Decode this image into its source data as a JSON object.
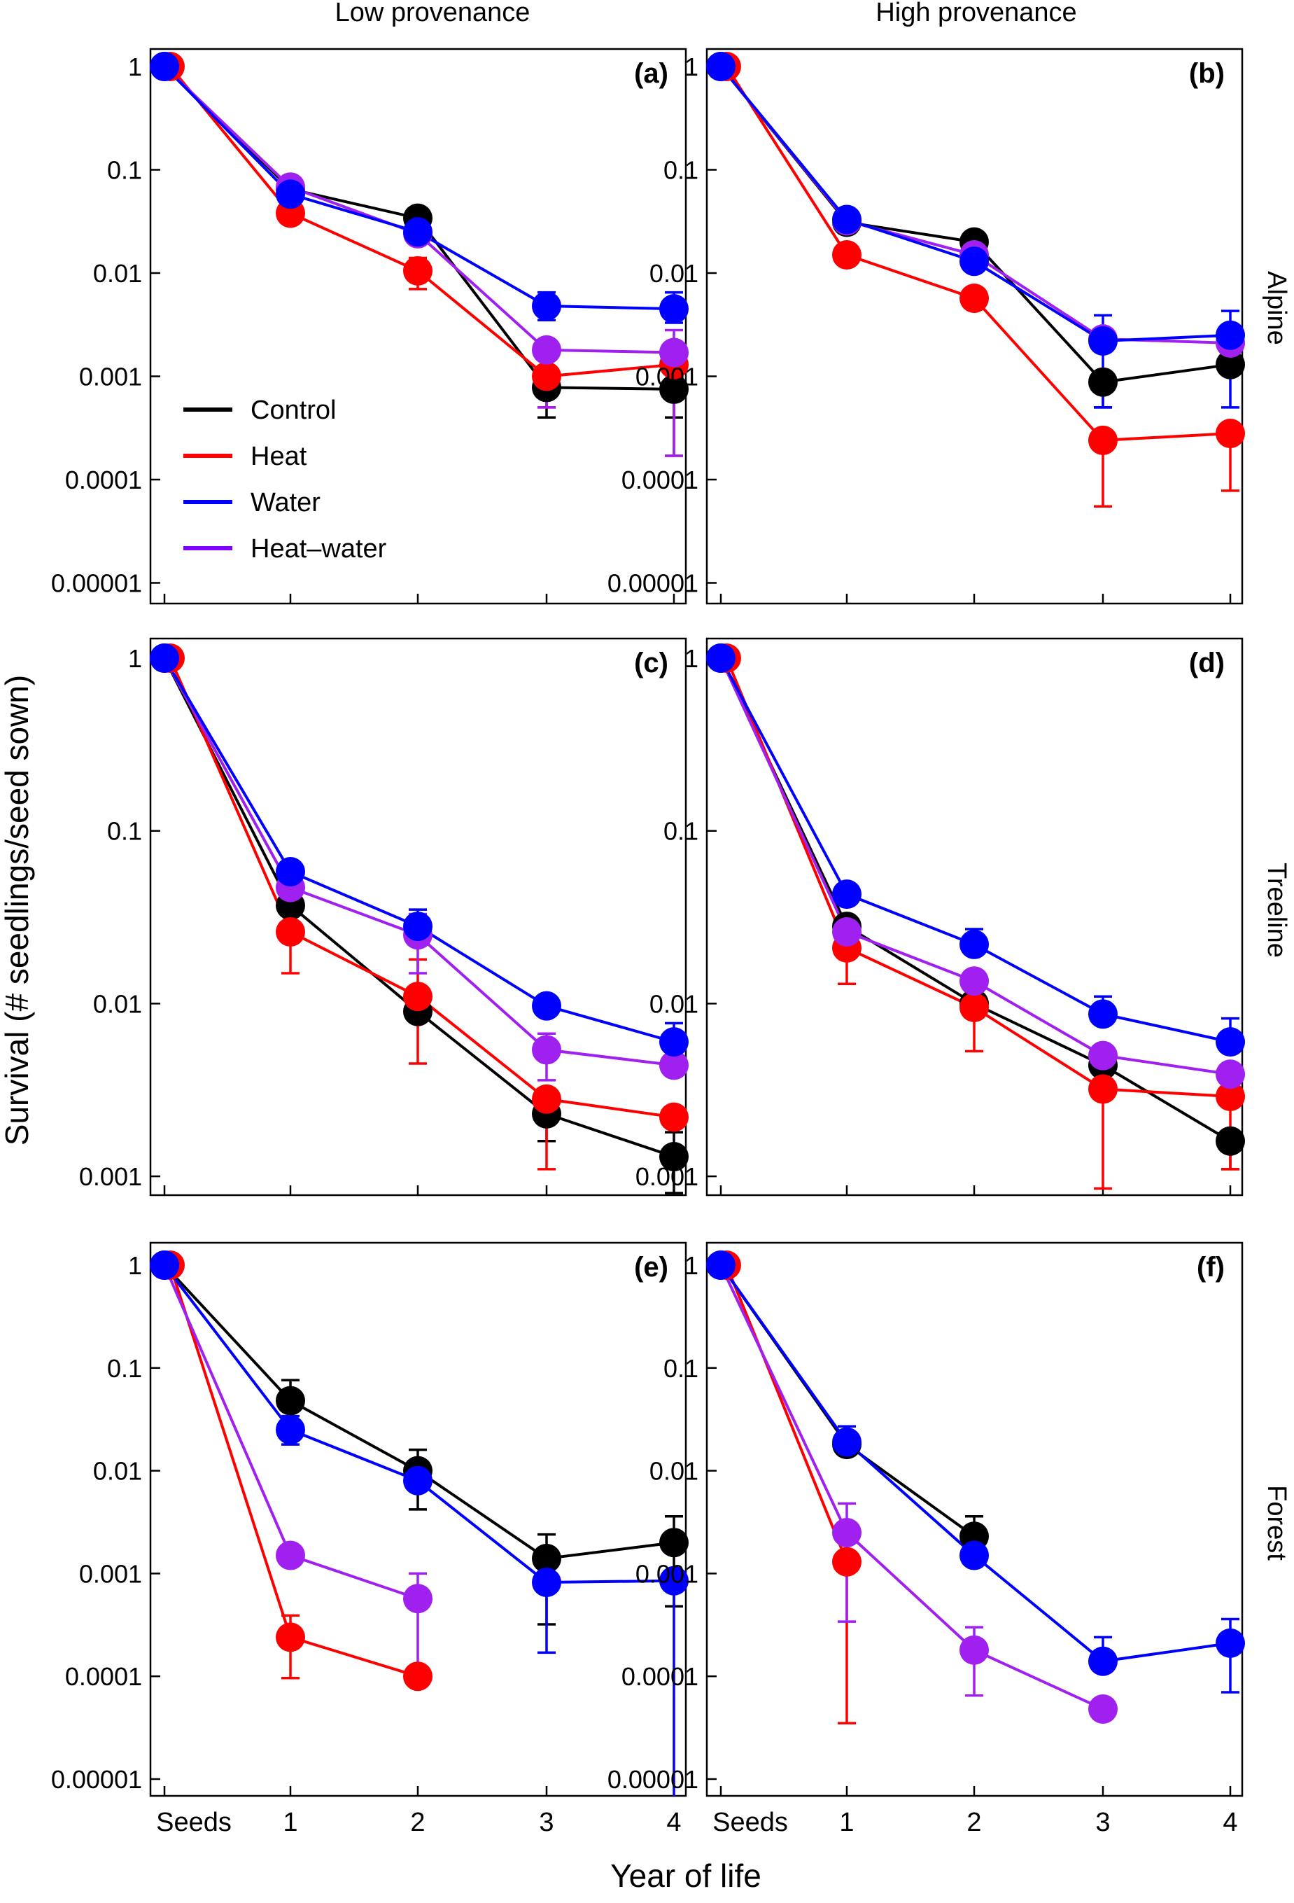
{
  "figure": {
    "column_titles": [
      "Low provenance",
      "High provenance"
    ],
    "row_titles": [
      "Alpine",
      "Treeline",
      "Forest"
    ],
    "ylabel": "Survival (# seedlings/seed sown)",
    "xlabel": "Year of life",
    "legend": [
      {
        "label": "Control",
        "color": "#000000"
      },
      {
        "label": "Heat",
        "color": "#ff0000"
      },
      {
        "label": "Water",
        "color": "#0000ff"
      },
      {
        "label": "Heat–water",
        "color": "#8000ff"
      }
    ],
    "series_colors": {
      "Control": "#000000",
      "Heat": "#ff0000",
      "Water": "#0000ff",
      "Heat-water": "#a020f0"
    }
  },
  "chart_data": [
    {
      "type": "line",
      "panel_label": "(a)",
      "y_scale": "log",
      "ylim": [
        1e-05,
        1
      ],
      "categories": [
        "Seeds",
        "1",
        "2",
        "3",
        "4"
      ],
      "y_ticks": [
        "1",
        "0.1",
        "0.01",
        "0.001",
        "0.0001",
        "0.00001"
      ],
      "legend_shown": true,
      "series": [
        {
          "name": "Control",
          "values": [
            1,
            0.065,
            0.034,
            0.00078,
            0.00075
          ],
          "err_low": [
            null,
            null,
            null,
            0.0004,
            0.0004
          ],
          "err_high": [
            null,
            null,
            null,
            null,
            null
          ]
        },
        {
          "name": "Heat",
          "values": [
            1,
            0.038,
            0.0105,
            0.001,
            0.0013
          ],
          "err_low": [
            null,
            0.034,
            0.007,
            0.0005,
            0.00017
          ],
          "err_high": [
            null,
            0.045,
            0.014,
            null,
            null
          ]
        },
        {
          "name": "Water",
          "values": [
            1,
            0.058,
            0.025,
            0.0048,
            0.0045
          ],
          "err_low": [
            null,
            null,
            null,
            0.0035,
            0.0033
          ],
          "err_high": [
            null,
            null,
            null,
            0.0065,
            0.0065
          ]
        },
        {
          "name": "Heat-water",
          "values": [
            1,
            0.068,
            0.024,
            0.0018,
            0.0017
          ],
          "err_low": [
            null,
            null,
            null,
            0.0005,
            0.00017
          ],
          "err_high": [
            null,
            null,
            null,
            null,
            0.0028
          ]
        }
      ]
    },
    {
      "type": "line",
      "panel_label": "(b)",
      "y_scale": "log",
      "ylim": [
        1e-05,
        1
      ],
      "categories": [
        "Seeds",
        "1",
        "2",
        "3",
        "4"
      ],
      "y_ticks": [
        "1",
        "0.1",
        "0.01",
        "0.001",
        "0.0001",
        "0.00001"
      ],
      "legend_shown": false,
      "series": [
        {
          "name": "Control",
          "values": [
            1,
            0.031,
            0.02,
            0.00088,
            0.0013
          ],
          "err_low": [
            null,
            null,
            null,
            0.0005,
            null
          ],
          "err_high": [
            null,
            null,
            null,
            null,
            null
          ]
        },
        {
          "name": "Heat",
          "values": [
            1,
            0.015,
            0.0057,
            0.00024,
            0.00028
          ],
          "err_low": [
            null,
            null,
            null,
            5.5e-05,
            7.8e-05
          ],
          "err_high": [
            null,
            null,
            null,
            null,
            null
          ]
        },
        {
          "name": "Water",
          "values": [
            1,
            0.033,
            0.013,
            0.0022,
            0.0025
          ],
          "err_low": [
            null,
            null,
            null,
            0.0005,
            0.0005
          ],
          "err_high": [
            null,
            null,
            null,
            0.0039,
            0.0043
          ]
        },
        {
          "name": "Heat-water",
          "values": [
            1,
            0.032,
            0.015,
            0.0023,
            0.0021
          ],
          "err_low": [
            null,
            null,
            null,
            null,
            null
          ],
          "err_high": [
            null,
            null,
            null,
            null,
            null
          ]
        }
      ]
    },
    {
      "type": "line",
      "panel_label": "(c)",
      "y_scale": "log",
      "ylim": [
        0.00085,
        1.25
      ],
      "categories": [
        "Seeds",
        "1",
        "2",
        "3",
        "4"
      ],
      "y_ticks": [
        "1",
        "0.1",
        "0.01",
        "0.001"
      ],
      "legend_shown": false,
      "series": [
        {
          "name": "Control",
          "values": [
            1,
            0.037,
            0.009,
            0.0023,
            0.0013
          ],
          "err_low": [
            null,
            null,
            null,
            0.0016,
            0.0008
          ],
          "err_high": [
            null,
            null,
            null,
            null,
            0.0018
          ]
        },
        {
          "name": "Heat",
          "values": [
            1,
            0.026,
            0.011,
            0.0028,
            0.0022
          ],
          "err_low": [
            null,
            0.015,
            0.0045,
            0.0011,
            null
          ],
          "err_high": [
            null,
            null,
            0.018,
            null,
            null
          ]
        },
        {
          "name": "Water",
          "values": [
            1,
            0.058,
            0.028,
            0.0097,
            0.006
          ],
          "err_low": [
            null,
            null,
            null,
            null,
            null
          ],
          "err_high": [
            null,
            null,
            0.035,
            null,
            0.0077
          ]
        },
        {
          "name": "Heat-water",
          "values": [
            1,
            0.047,
            0.025,
            0.0054,
            0.0044
          ],
          "err_low": [
            null,
            null,
            0.015,
            0.0036,
            null
          ],
          "err_high": [
            null,
            null,
            0.033,
            0.0067,
            null
          ]
        }
      ]
    },
    {
      "type": "line",
      "panel_label": "(d)",
      "y_scale": "log",
      "ylim": [
        0.00085,
        1.25
      ],
      "categories": [
        "Seeds",
        "1",
        "2",
        "3",
        "4"
      ],
      "y_ticks": [
        "1",
        "0.1",
        "0.01",
        "0.001"
      ],
      "legend_shown": false,
      "series": [
        {
          "name": "Control",
          "values": [
            1,
            0.028,
            0.01,
            0.0044,
            0.0016
          ],
          "err_low": [
            null,
            null,
            null,
            null,
            0.0011
          ],
          "err_high": [
            null,
            null,
            null,
            null,
            null
          ]
        },
        {
          "name": "Heat",
          "values": [
            1,
            0.021,
            0.0095,
            0.0032,
            0.0029
          ],
          "err_low": [
            null,
            0.013,
            0.0053,
            0.00085,
            0.0011
          ],
          "err_high": [
            null,
            null,
            null,
            null,
            null
          ]
        },
        {
          "name": "Water",
          "values": [
            1,
            0.043,
            0.022,
            0.0087,
            0.006
          ],
          "err_low": [
            null,
            null,
            null,
            null,
            null
          ],
          "err_high": [
            null,
            null,
            0.027,
            0.011,
            0.0082
          ]
        },
        {
          "name": "Heat-water",
          "values": [
            1,
            0.026,
            0.0135,
            0.005,
            0.0039
          ],
          "err_low": [
            null,
            null,
            null,
            null,
            null
          ],
          "err_high": [
            null,
            null,
            null,
            null,
            null
          ]
        }
      ]
    },
    {
      "type": "line",
      "panel_label": "(e)",
      "y_scale": "log",
      "ylim": [
        1e-05,
        1
      ],
      "categories": [
        "Seeds",
        "1",
        "2",
        "3",
        "4"
      ],
      "y_ticks": [
        "1",
        "0.1",
        "0.01",
        "0.001",
        "0.0001",
        "0.00001"
      ],
      "legend_shown": false,
      "series": [
        {
          "name": "Control",
          "values": [
            1,
            0.048,
            0.01,
            0.0014,
            0.002
          ],
          "err_low": [
            null,
            null,
            0.0042,
            0.00032,
            0.00048
          ],
          "err_high": [
            null,
            0.076,
            0.016,
            0.0024,
            0.0036
          ]
        },
        {
          "name": "Heat",
          "values": [
            1,
            0.00024,
            0.0001,
            null,
            null
          ],
          "err_low": [
            null,
            9.6e-05,
            null,
            null,
            null
          ],
          "err_high": [
            null,
            0.00039,
            null,
            null,
            null
          ]
        },
        {
          "name": "Water",
          "values": [
            1,
            0.025,
            0.008,
            0.00082,
            0.00085
          ],
          "err_low": [
            null,
            0.018,
            null,
            0.00017,
            5e-06
          ],
          "err_high": [
            null,
            0.034,
            null,
            null,
            null
          ]
        },
        {
          "name": "Heat-water",
          "values": [
            1,
            0.0015,
            0.00057,
            null,
            null
          ],
          "err_low": [
            null,
            null,
            0.00011,
            null,
            null
          ],
          "err_high": [
            null,
            null,
            0.001,
            null,
            null
          ]
        }
      ]
    },
    {
      "type": "line",
      "panel_label": "(f)",
      "y_scale": "log",
      "ylim": [
        1e-05,
        1
      ],
      "categories": [
        "Seeds",
        "1",
        "2",
        "3",
        "4"
      ],
      "y_ticks": [
        "1",
        "0.1",
        "0.01",
        "0.001",
        "0.0001",
        "0.00001"
      ],
      "legend_shown": false,
      "series": [
        {
          "name": "Control",
          "values": [
            1,
            0.018,
            0.0023,
            null,
            null
          ],
          "err_low": [
            null,
            null,
            null,
            null,
            null
          ],
          "err_high": [
            null,
            null,
            0.0036,
            null,
            null
          ]
        },
        {
          "name": "Heat",
          "values": [
            1,
            0.0013,
            null,
            null,
            null
          ],
          "err_low": [
            null,
            3.5e-05,
            null,
            null,
            null
          ],
          "err_high": [
            null,
            null,
            null,
            null,
            null
          ]
        },
        {
          "name": "Water",
          "values": [
            1,
            0.019,
            0.0015,
            0.00014,
            0.00021
          ],
          "err_low": [
            null,
            null,
            null,
            null,
            7e-05
          ],
          "err_high": [
            null,
            0.027,
            null,
            0.00024,
            0.00036
          ]
        },
        {
          "name": "Heat-water",
          "values": [
            1,
            0.0025,
            0.00018,
            4.8e-05,
            null
          ],
          "err_low": [
            null,
            0.00034,
            6.5e-05,
            null,
            null
          ],
          "err_high": [
            null,
            0.0048,
            0.0003,
            null,
            null
          ]
        }
      ]
    }
  ]
}
